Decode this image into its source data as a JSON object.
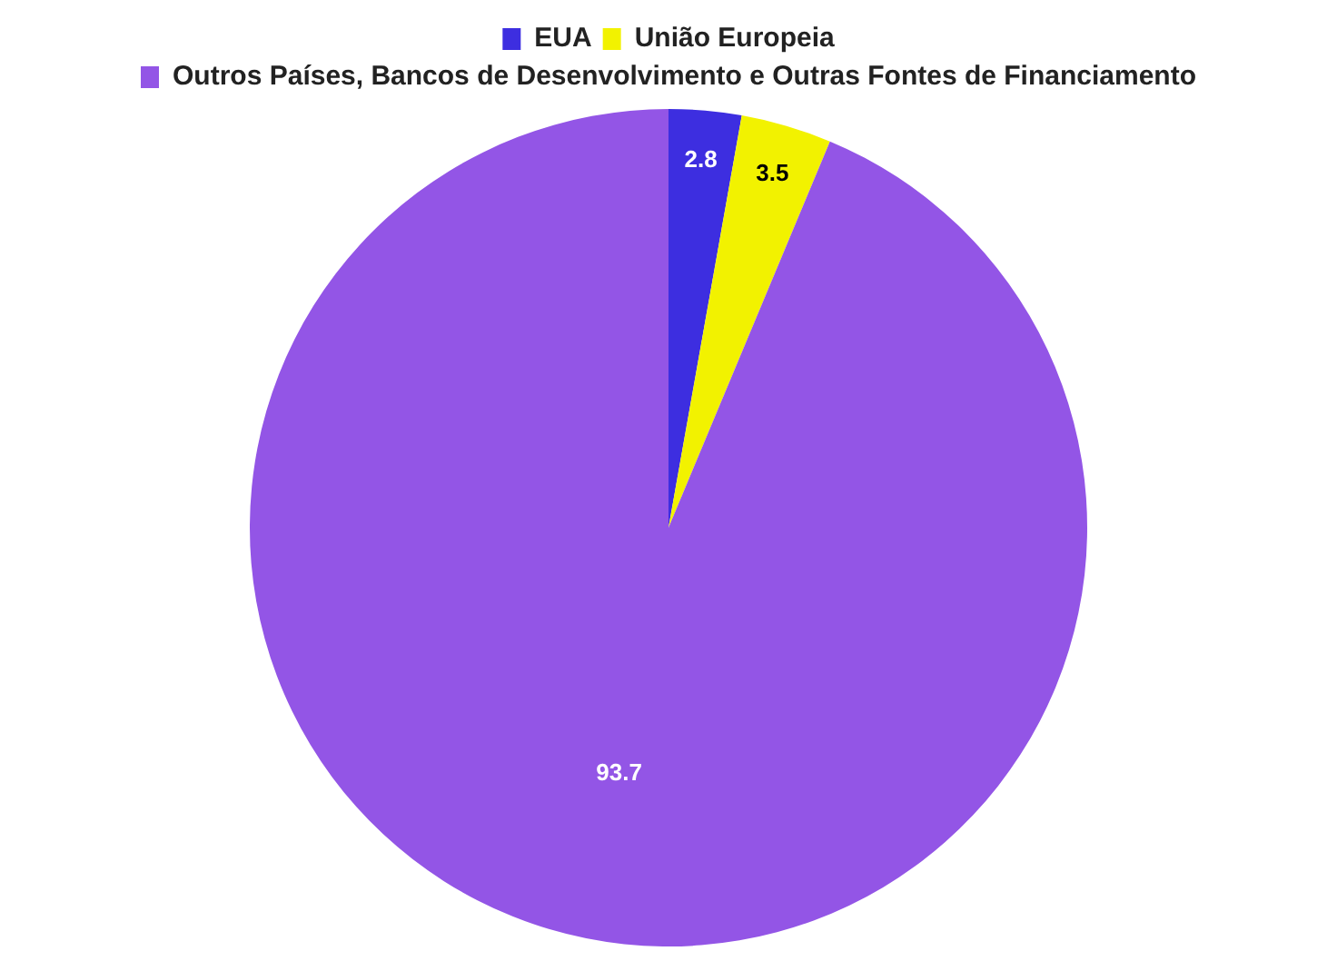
{
  "chart_data": {
    "type": "pie",
    "categories": [
      "EUA",
      "União Europeia",
      "Outros Países, Bancos de Desenvolvimento e Outras Fontes de Financiamento"
    ],
    "values": [
      2.8,
      3.5,
      93.7
    ],
    "colors": [
      "#3d2ee0",
      "#f2f200",
      "#9355e6"
    ],
    "data_labels": true,
    "legend": "top"
  }
}
